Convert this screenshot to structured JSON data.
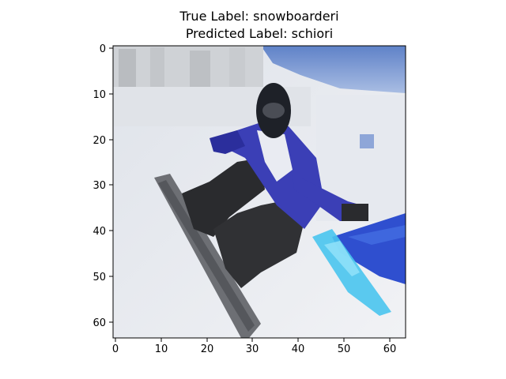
{
  "title": {
    "true_label": "True Label: snowboarderi",
    "predicted_label": "Predicted Label: schiori"
  },
  "image": {
    "subject": "snowboarder in black helmet and blue-white jacket riding a snowboard on a snowy slope under a blue sky",
    "pixel_grid": "64x64, low-resolution and pixelated"
  },
  "axes": {
    "x_ticks": [
      "0",
      "10",
      "20",
      "30",
      "40",
      "50",
      "60"
    ],
    "y_ticks": [
      "0",
      "10",
      "20",
      "30",
      "40",
      "50",
      "60"
    ],
    "xlim": [
      -0.5,
      63.5
    ],
    "ylim": [
      63.5,
      -0.5
    ]
  },
  "colors": {
    "sky": "#6f8fcf",
    "snow": "#e8ebf0",
    "helmet": "#1e2128",
    "jacket_blue": "#3b3fb6",
    "pants": "#2a2b2e",
    "board": "#6d6f74",
    "banner": "#2f4fcf",
    "cyan_spray": "#49c4ee"
  }
}
